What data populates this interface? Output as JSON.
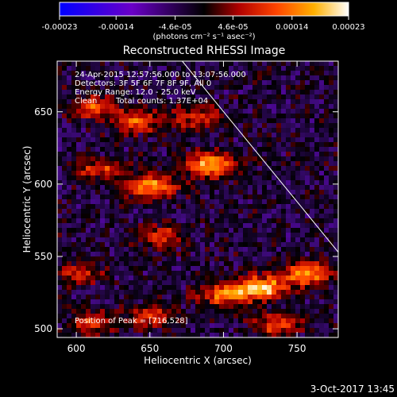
{
  "colorbar": {
    "tick_labels": [
      "-0.00023",
      "-0.00014",
      "-4.6e-05",
      "4.6e-05",
      "0.00014",
      "0.00023"
    ],
    "tick_values": [
      -0.00023,
      -0.00014,
      -4.6e-05,
      4.6e-05,
      0.00014,
      0.00023
    ],
    "range": [
      -0.00023,
      0.00023
    ],
    "unit_label": "(photons cm⁻² s⁻¹ asec⁻²)",
    "colors": [
      "#0000ff",
      "#6a00c8",
      "#000000",
      "#b00000",
      "#ff4400",
      "#ffb000",
      "#ffffff"
    ]
  },
  "chart_data": {
    "type": "heatmap",
    "title": "Reconstructed RHESSI Image",
    "xlabel": "Heliocentric X (arcsec)",
    "ylabel": "Heliocentric Y (arcsec)",
    "xlim": [
      587,
      778
    ],
    "ylim": [
      494,
      685
    ],
    "xticks": [
      600,
      650,
      700,
      750
    ],
    "xtick_labels": [
      "600",
      "650",
      "700",
      "750"
    ],
    "yticks": [
      500,
      550,
      600,
      650
    ],
    "ytick_labels": [
      "500",
      "550",
      "600",
      "650"
    ],
    "annotations": [
      "24-Apr-2015 12:57:56.000 to 13:07:56.000",
      "Detectors: 3F 5F 6F 7F 8F 9F, All 0",
      "Energy Range: 12.0 - 25.0 keV",
      "Clean",
      "Total counts: 1.37E+04",
      "Position of Peak = [716,528]"
    ],
    "peak": [
      716,
      528
    ],
    "limb_line": [
      [
        672,
        685
      ],
      [
        778,
        553
      ]
    ],
    "bright_regions": [
      {
        "x": 610,
        "y": 655,
        "level": 0.55
      },
      {
        "x": 640,
        "y": 645,
        "level": 0.6
      },
      {
        "x": 680,
        "y": 648,
        "level": 0.55
      },
      {
        "x": 615,
        "y": 612,
        "level": 0.5
      },
      {
        "x": 650,
        "y": 600,
        "level": 0.85
      },
      {
        "x": 690,
        "y": 615,
        "level": 0.9
      },
      {
        "x": 655,
        "y": 565,
        "level": 0.5
      },
      {
        "x": 600,
        "y": 540,
        "level": 0.45
      },
      {
        "x": 725,
        "y": 530,
        "level": 1.0
      },
      {
        "x": 755,
        "y": 540,
        "level": 0.9
      },
      {
        "x": 700,
        "y": 525,
        "level": 0.75
      },
      {
        "x": 650,
        "y": 510,
        "level": 0.55
      },
      {
        "x": 610,
        "y": 505,
        "level": 0.5
      },
      {
        "x": 735,
        "y": 505,
        "level": 0.6
      }
    ]
  },
  "footer": {
    "date": "3-Oct-2017 13:45"
  }
}
